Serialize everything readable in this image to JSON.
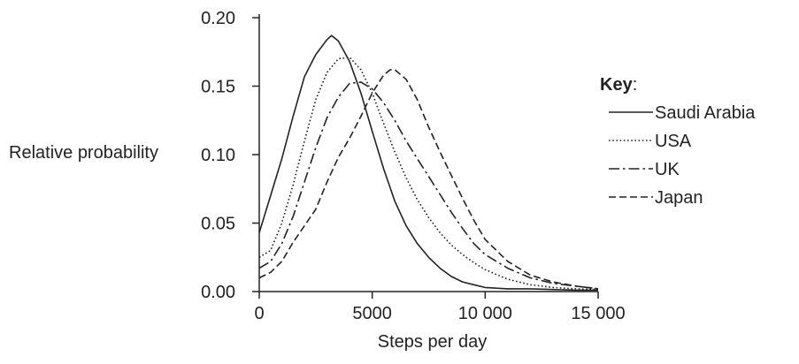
{
  "chart_data": {
    "type": "line",
    "title": "",
    "xlabel": "Steps per day",
    "ylabel": "Relative probability",
    "xlim": [
      0,
      15000
    ],
    "ylim": [
      0,
      0.2
    ],
    "x_ticks": [
      0,
      5000,
      10000,
      15000
    ],
    "x_tick_labels": [
      "0",
      "5000",
      "10 000",
      "15 000"
    ],
    "y_ticks": [
      0,
      0.05,
      0.1,
      0.15,
      0.2
    ],
    "y_tick_labels": [
      "0.00",
      "0.05",
      "0.10",
      "0.15",
      "0.20"
    ],
    "grid": false,
    "legend": {
      "title": "Key",
      "title_suffix": ":",
      "placement": "right"
    },
    "series": [
      {
        "name": "Saudi Arabia",
        "dash": "solid",
        "points": [
          [
            0,
            0.043
          ],
          [
            500,
            0.07
          ],
          [
            1000,
            0.097
          ],
          [
            1500,
            0.128
          ],
          [
            2000,
            0.157
          ],
          [
            2500,
            0.173
          ],
          [
            3000,
            0.184
          ],
          [
            3200,
            0.187
          ],
          [
            3500,
            0.183
          ],
          [
            4000,
            0.168
          ],
          [
            4500,
            0.145
          ],
          [
            5000,
            0.117
          ],
          [
            5500,
            0.09
          ],
          [
            6000,
            0.066
          ],
          [
            6500,
            0.048
          ],
          [
            7000,
            0.035
          ],
          [
            7500,
            0.025
          ],
          [
            8000,
            0.017
          ],
          [
            8500,
            0.011
          ],
          [
            9000,
            0.007
          ],
          [
            9500,
            0.005
          ],
          [
            10000,
            0.003
          ],
          [
            11000,
            0.002
          ],
          [
            12000,
            0.002
          ],
          [
            13000,
            0.0015
          ],
          [
            14000,
            0.001
          ],
          [
            15000,
            0.001
          ]
        ]
      },
      {
        "name": "USA",
        "dash": "dotted",
        "points": [
          [
            0,
            0.025
          ],
          [
            500,
            0.03
          ],
          [
            1000,
            0.05
          ],
          [
            1500,
            0.078
          ],
          [
            2000,
            0.11
          ],
          [
            2500,
            0.14
          ],
          [
            3000,
            0.16
          ],
          [
            3500,
            0.17
          ],
          [
            4000,
            0.171
          ],
          [
            4500,
            0.162
          ],
          [
            5000,
            0.145
          ],
          [
            5500,
            0.123
          ],
          [
            6000,
            0.102
          ],
          [
            6500,
            0.083
          ],
          [
            7000,
            0.067
          ],
          [
            7500,
            0.054
          ],
          [
            8000,
            0.043
          ],
          [
            8500,
            0.034
          ],
          [
            9000,
            0.027
          ],
          [
            9500,
            0.021
          ],
          [
            10000,
            0.016
          ],
          [
            11000,
            0.009
          ],
          [
            12000,
            0.005
          ],
          [
            13000,
            0.003
          ],
          [
            14000,
            0.002
          ],
          [
            15000,
            0.0015
          ]
        ]
      },
      {
        "name": "UK",
        "dash": "dashdot",
        "points": [
          [
            0,
            0.017
          ],
          [
            500,
            0.022
          ],
          [
            1000,
            0.035
          ],
          [
            1500,
            0.055
          ],
          [
            2000,
            0.08
          ],
          [
            2500,
            0.105
          ],
          [
            3000,
            0.127
          ],
          [
            3500,
            0.142
          ],
          [
            4000,
            0.152
          ],
          [
            4500,
            0.153
          ],
          [
            5000,
            0.148
          ],
          [
            5500,
            0.138
          ],
          [
            6000,
            0.125
          ],
          [
            6500,
            0.11
          ],
          [
            7000,
            0.097
          ],
          [
            7500,
            0.084
          ],
          [
            8000,
            0.071
          ],
          [
            8500,
            0.058
          ],
          [
            9000,
            0.046
          ],
          [
            9500,
            0.035
          ],
          [
            10000,
            0.027
          ],
          [
            11000,
            0.017
          ],
          [
            12000,
            0.01
          ],
          [
            13000,
            0.006
          ],
          [
            14000,
            0.004
          ],
          [
            15000,
            0.002
          ]
        ]
      },
      {
        "name": "Japan",
        "dash": "dashed",
        "points": [
          [
            0,
            0.01
          ],
          [
            500,
            0.014
          ],
          [
            1000,
            0.022
          ],
          [
            1500,
            0.036
          ],
          [
            2000,
            0.048
          ],
          [
            2500,
            0.06
          ],
          [
            3000,
            0.08
          ],
          [
            3500,
            0.098
          ],
          [
            4000,
            0.112
          ],
          [
            4500,
            0.128
          ],
          [
            5000,
            0.145
          ],
          [
            5500,
            0.158
          ],
          [
            5800,
            0.162
          ],
          [
            6000,
            0.162
          ],
          [
            6500,
            0.155
          ],
          [
            7000,
            0.14
          ],
          [
            7500,
            0.12
          ],
          [
            8000,
            0.102
          ],
          [
            8500,
            0.085
          ],
          [
            9000,
            0.068
          ],
          [
            9500,
            0.052
          ],
          [
            10000,
            0.038
          ],
          [
            11000,
            0.022
          ],
          [
            12000,
            0.012
          ],
          [
            13000,
            0.007
          ],
          [
            14000,
            0.004
          ],
          [
            15000,
            0.002
          ]
        ]
      }
    ]
  }
}
